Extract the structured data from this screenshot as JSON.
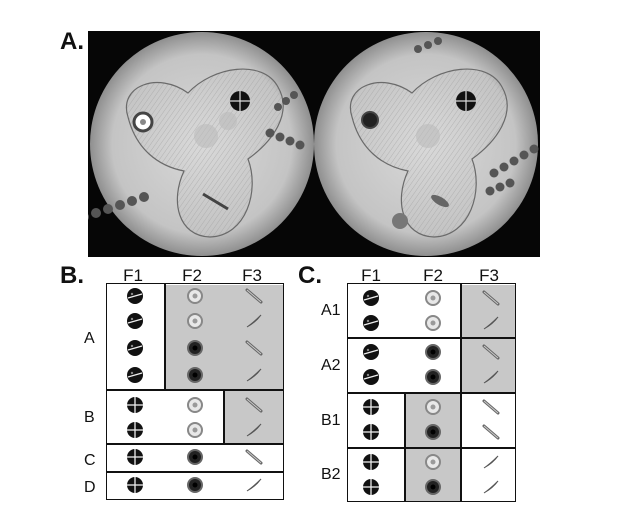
{
  "labels": {
    "a": "A.",
    "b": "B.",
    "c": "C."
  },
  "panel_b": {
    "columns": [
      "F1",
      "F2",
      "F3"
    ],
    "rows": [
      "A",
      "B",
      "C",
      "D"
    ]
  },
  "panel_c": {
    "columns": [
      "F1",
      "F2",
      "F3"
    ],
    "rows": [
      "A1",
      "A2",
      "B1",
      "B2"
    ]
  }
}
